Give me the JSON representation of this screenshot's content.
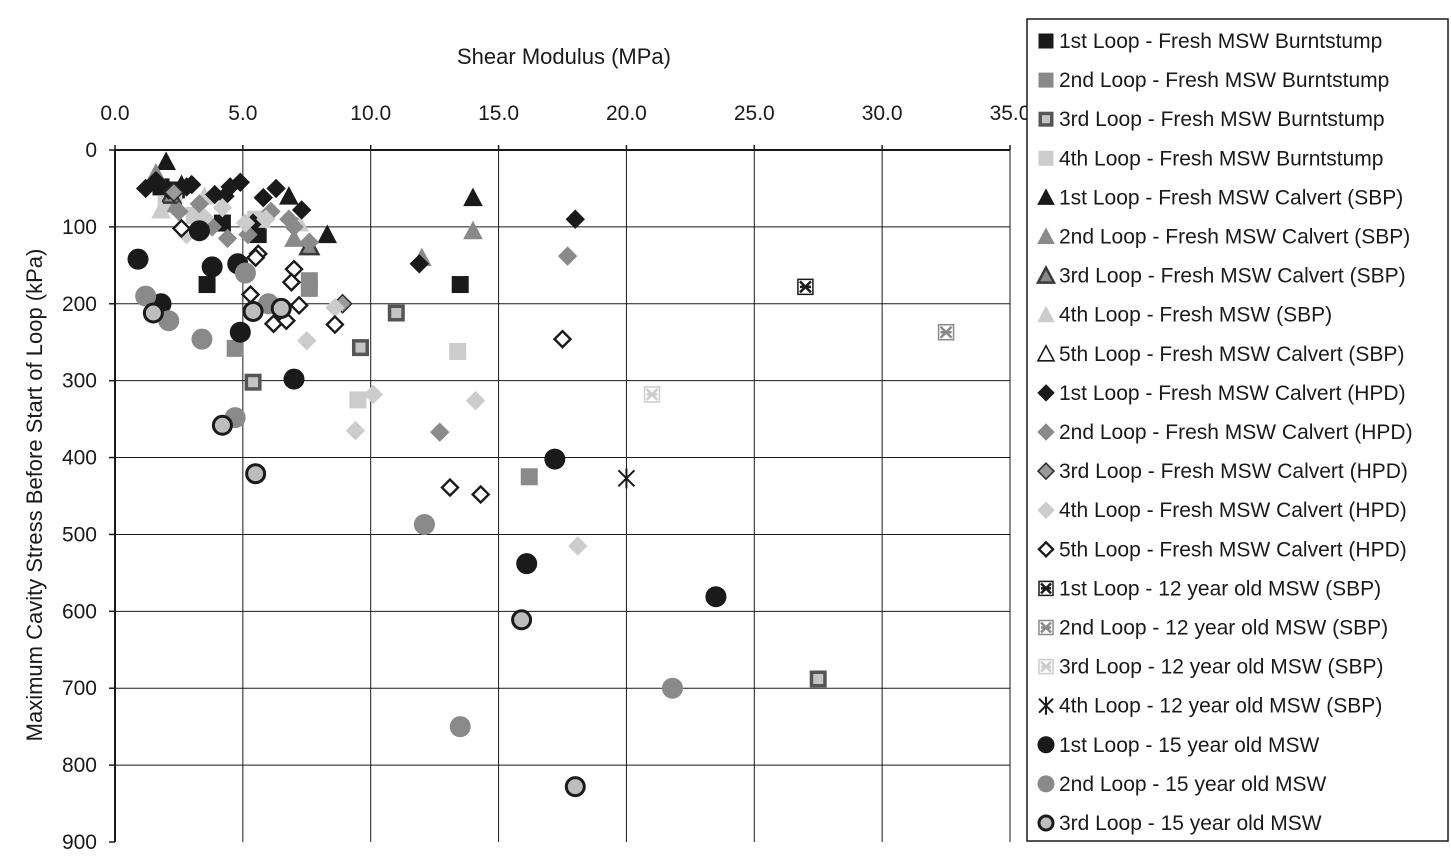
{
  "chart_data": {
    "type": "scatter",
    "xlabel": "Shear Modulus (MPa)",
    "ylabel": "Maximum Cavity Stress Before Start of Loop (kPa)",
    "xlim": [
      0,
      35
    ],
    "ylim": [
      0,
      900
    ],
    "x_axis_position": "top",
    "y_axis_inverted": true,
    "grid": true,
    "legend_position": "right",
    "x_ticks": [
      "0.0",
      "5.0",
      "10.0",
      "15.0",
      "20.0",
      "25.0",
      "30.0",
      "35.0"
    ],
    "y_ticks": [
      "0",
      "100",
      "200",
      "300",
      "400",
      "500",
      "600",
      "700",
      "800",
      "900"
    ],
    "series": [
      {
        "name": "1st Loop - Fresh MSW Burntstump",
        "marker": "square",
        "fill": "#1a1a1a",
        "stroke": "#1a1a1a",
        "x": [
          1.8,
          2.4,
          3.6,
          4.2,
          5.6,
          13.5
        ],
        "y": [
          48,
          52,
          175,
          95,
          110,
          175
        ]
      },
      {
        "name": "2nd Loop - Fresh MSW Burntstump",
        "marker": "square",
        "fill": "#8a8a8a",
        "stroke": "#8a8a8a",
        "x": [
          4.7,
          7.6,
          16.2,
          7.6
        ],
        "y": [
          258,
          170,
          425,
          180
        ]
      },
      {
        "name": "3rd Loop - Fresh MSW Burntstump",
        "marker": "square-boxed",
        "fill": "#c4c4c4",
        "stroke": "#555555",
        "x": [
          5.4,
          9.6,
          11.0,
          27.5
        ],
        "y": [
          302,
          257,
          212,
          688
        ]
      },
      {
        "name": "4th Loop - Fresh MSW Burntstump",
        "marker": "square",
        "fill": "#cccccc",
        "stroke": "#cccccc",
        "x": [
          2.0,
          3.1,
          9.5,
          13.4,
          5.5,
          2.3
        ],
        "y": [
          70,
          85,
          325,
          262,
          90,
          60
        ]
      },
      {
        "name": "1st Loop - Fresh MSW Calvert (SBP)",
        "marker": "triangle",
        "fill": "#1a1a1a",
        "stroke": "#1a1a1a",
        "x": [
          2.0,
          6.8,
          8.3,
          14.0,
          2.6
        ],
        "y": [
          15,
          60,
          110,
          62,
          45
        ]
      },
      {
        "name": "2nd Loop - Fresh MSW Calvert (SBP)",
        "marker": "triangle",
        "fill": "#8a8a8a",
        "stroke": "#8a8a8a",
        "x": [
          1.6,
          2.4,
          7.0,
          14.0,
          12.0
        ],
        "y": [
          30,
          70,
          115,
          105,
          140
        ]
      },
      {
        "name": "3rd Loop - Fresh MSW Calvert (SBP)",
        "marker": "triangle-boxed",
        "fill": "#8a8a8a",
        "stroke": "#3a3a3a",
        "x": [
          7.6,
          2.2
        ],
        "y": [
          125,
          58
        ]
      },
      {
        "name": "4th Loop - Fresh MSW (SBP)",
        "marker": "triangle",
        "fill": "#cccccc",
        "stroke": "#cccccc",
        "x": [
          3.5,
          5.7,
          1.8,
          7.2
        ],
        "y": [
          60,
          90,
          78,
          95
        ]
      },
      {
        "name": "5th Loop - Fresh MSW Calvert (SBP)",
        "marker": "triangle-open",
        "fill": "#ffffff",
        "stroke": "#1a1a1a",
        "x": [],
        "y": []
      },
      {
        "name": "1st Loop - Fresh MSW Calvert (HPD)",
        "marker": "diamond",
        "fill": "#1a1a1a",
        "stroke": "#1a1a1a",
        "x": [
          1.2,
          1.6,
          2.1,
          2.8,
          3.9,
          4.5,
          4.9,
          5.8,
          6.3,
          7.3,
          11.9,
          18.0,
          4.3,
          5.4,
          3.0
        ],
        "y": [
          50,
          40,
          52,
          48,
          58,
          48,
          42,
          62,
          50,
          78,
          148,
          90,
          60,
          95,
          45
        ]
      },
      {
        "name": "2nd Loop - Fresh MSW Calvert (HPD)",
        "marker": "diamond",
        "fill": "#8a8a8a",
        "stroke": "#8a8a8a",
        "x": [
          2.5,
          3.3,
          4.4,
          6.8,
          7.6,
          12.7,
          17.7,
          3.8,
          6.1,
          5.2,
          7.0
        ],
        "y": [
          80,
          70,
          115,
          90,
          120,
          367,
          138,
          100,
          80,
          110,
          100
        ]
      },
      {
        "name": "3rd Loop - Fresh MSW Calvert (HPD)",
        "marker": "diamond-dot",
        "fill": "#9a9a9a",
        "stroke": "#2a2a2a",
        "x": [
          8.9,
          2.3
        ],
        "y": [
          200,
          55
        ]
      },
      {
        "name": "4th Loop - Fresh MSW Calvert (HPD)",
        "marker": "diamond",
        "fill": "#cccccc",
        "stroke": "#cccccc",
        "x": [
          2.8,
          4.2,
          5.1,
          5.9,
          9.4,
          10.1,
          14.1,
          18.1,
          7.5,
          8.6,
          3.5
        ],
        "y": [
          110,
          75,
          95,
          90,
          365,
          318,
          326,
          515,
          248,
          205,
          88
        ]
      },
      {
        "name": "5th Loop - Fresh MSW Calvert (HPD)",
        "marker": "diamond-open",
        "fill": "#ffffff",
        "stroke": "#1a1a1a",
        "x": [
          2.6,
          5.3,
          5.6,
          6.2,
          6.7,
          7.0,
          7.2,
          8.6,
          13.1,
          14.3,
          17.5,
          6.9,
          5.5
        ],
        "y": [
          102,
          188,
          135,
          226,
          222,
          155,
          202,
          227,
          439,
          448,
          246,
          172,
          140
        ]
      },
      {
        "name": "1st Loop - 12 year old MSW (SBP)",
        "marker": "x-box",
        "fill": "#1a1a1a",
        "stroke": "#1a1a1a",
        "x": [
          27.0
        ],
        "y": [
          178
        ]
      },
      {
        "name": "2nd Loop - 12 year old MSW (SBP)",
        "marker": "x-box",
        "fill": "#8a8a8a",
        "stroke": "#8a8a8a",
        "x": [
          32.5
        ],
        "y": [
          237
        ]
      },
      {
        "name": "3rd Loop - 12 year old MSW (SBP)",
        "marker": "x-box",
        "fill": "#cccccc",
        "stroke": "#cccccc",
        "x": [
          21.0
        ],
        "y": [
          318
        ]
      },
      {
        "name": "4th Loop - 12 year old MSW (SBP)",
        "marker": "star",
        "fill": "#1a1a1a",
        "stroke": "#1a1a1a",
        "x": [
          20.0
        ],
        "y": [
          427
        ]
      },
      {
        "name": "1st Loop - 15 year old MSW",
        "marker": "circle",
        "fill": "#1a1a1a",
        "stroke": "#1a1a1a",
        "x": [
          0.9,
          1.8,
          3.3,
          3.8,
          4.8,
          4.9,
          7.0,
          17.2,
          16.1,
          23.5
        ],
        "y": [
          142,
          200,
          105,
          152,
          148,
          237,
          298,
          402,
          538,
          581
        ]
      },
      {
        "name": "2nd Loop - 15 year old MSW",
        "marker": "circle",
        "fill": "#8a8a8a",
        "stroke": "#8a8a8a",
        "x": [
          1.2,
          2.1,
          3.4,
          4.7,
          5.1,
          6.0,
          12.1,
          13.5,
          21.8
        ],
        "y": [
          190,
          222,
          246,
          348,
          160,
          200,
          487,
          750,
          700
        ]
      },
      {
        "name": "3rd Loop - 15 year old MSW",
        "marker": "circle-ring",
        "fill": "#bdbdbd",
        "stroke": "#1a1a1a",
        "x": [
          1.5,
          4.2,
          5.5,
          5.4,
          6.5,
          15.9,
          18.0
        ],
        "y": [
          212,
          358,
          421,
          210,
          206,
          611,
          828
        ]
      }
    ]
  }
}
